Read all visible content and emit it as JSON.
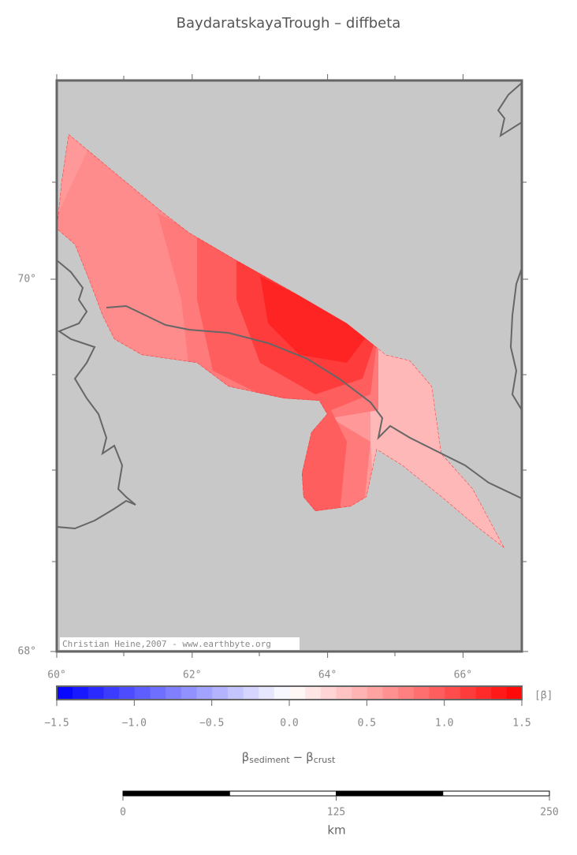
{
  "title": "BaydaratskayaTrough – diffbeta",
  "map": {
    "lat_ticks": [
      {
        "value": 70,
        "label": "70°"
      },
      {
        "value": 68,
        "label": "68°"
      }
    ],
    "lon_ticks": [
      {
        "value": 60,
        "label": "60°"
      },
      {
        "value": 62,
        "label": "62°"
      },
      {
        "value": 64,
        "label": "64°"
      },
      {
        "value": 66,
        "label": "66°"
      }
    ],
    "credit": "Christian Heine,2007 - www.earthbyte.org"
  },
  "colorbar": {
    "ticks": [
      {
        "value": -1.5,
        "label": "−1.5"
      },
      {
        "value": -1.0,
        "label": "−1.0"
      },
      {
        "value": -0.5,
        "label": "−0.5"
      },
      {
        "value": 0.0,
        "label": "0.0"
      },
      {
        "value": 0.5,
        "label": "0.5"
      },
      {
        "value": 1.0,
        "label": "1.0"
      },
      {
        "value": 1.5,
        "label": "1.5"
      }
    ],
    "unit": "[β]",
    "label": {
      "symbol_1": "β",
      "sub_1": "sediment",
      "operator": "−",
      "symbol_2": "β",
      "sub_2": "crust"
    }
  },
  "scale_bar": {
    "ticks": [
      0,
      125,
      250
    ],
    "unit": "km"
  }
}
